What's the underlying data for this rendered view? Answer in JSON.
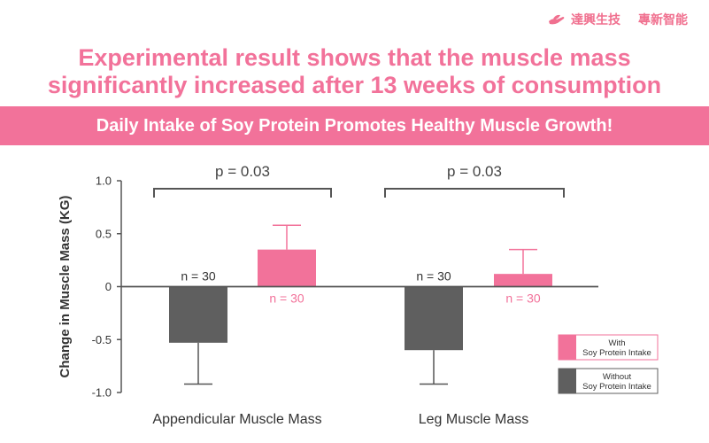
{
  "brand": {
    "name_left": "達興生技",
    "name_right": "專新智能"
  },
  "headline": {
    "line1": "Experimental result shows that the muscle mass",
    "line2": "significantly increased after 13 weeks of consumption"
  },
  "banner": {
    "text": "Daily Intake of Soy Protein Promotes Healthy Muscle Growth!"
  },
  "colors": {
    "pink": "#f2729a",
    "gray": "#5f5f5f",
    "accent_text": "#f0708f"
  },
  "chart_data": {
    "type": "bar",
    "title": "",
    "xlabel": "",
    "ylabel": "Change in Muscle Mass (KG)",
    "ylim": [
      -1.0,
      1.0
    ],
    "yticks": [
      {
        "value": 1.0,
        "label": "1.0"
      },
      {
        "value": 0.5,
        "label": "0.5"
      },
      {
        "value": 0,
        "label": "0"
      },
      {
        "value": -0.5,
        "label": "-0.5"
      },
      {
        "value": -1.0,
        "label": "-1.0"
      }
    ],
    "categories": [
      "Appendicular Muscle Mass",
      "Leg Muscle Mass"
    ],
    "series": [
      {
        "name": "Without Soy Protein Intake",
        "legend_line1": "Without",
        "legend_line2": "Soy Protein Intake",
        "color": "#5f5f5f",
        "values": [
          -0.53,
          -0.6
        ],
        "error_extent": [
          -0.92,
          -0.92
        ],
        "n_labels": [
          "n = 30",
          "n = 30"
        ]
      },
      {
        "name": "With Soy Protein Intake",
        "legend_line1": "With",
        "legend_line2": "Soy Protein Intake",
        "color": "#f2729a",
        "values": [
          0.35,
          0.12
        ],
        "error_extent": [
          0.58,
          0.35
        ],
        "n_labels": [
          "n = 30",
          "n = 30"
        ]
      }
    ],
    "significance": [
      "p = 0.03",
      "p = 0.03"
    ],
    "legend": "bottom-right"
  }
}
